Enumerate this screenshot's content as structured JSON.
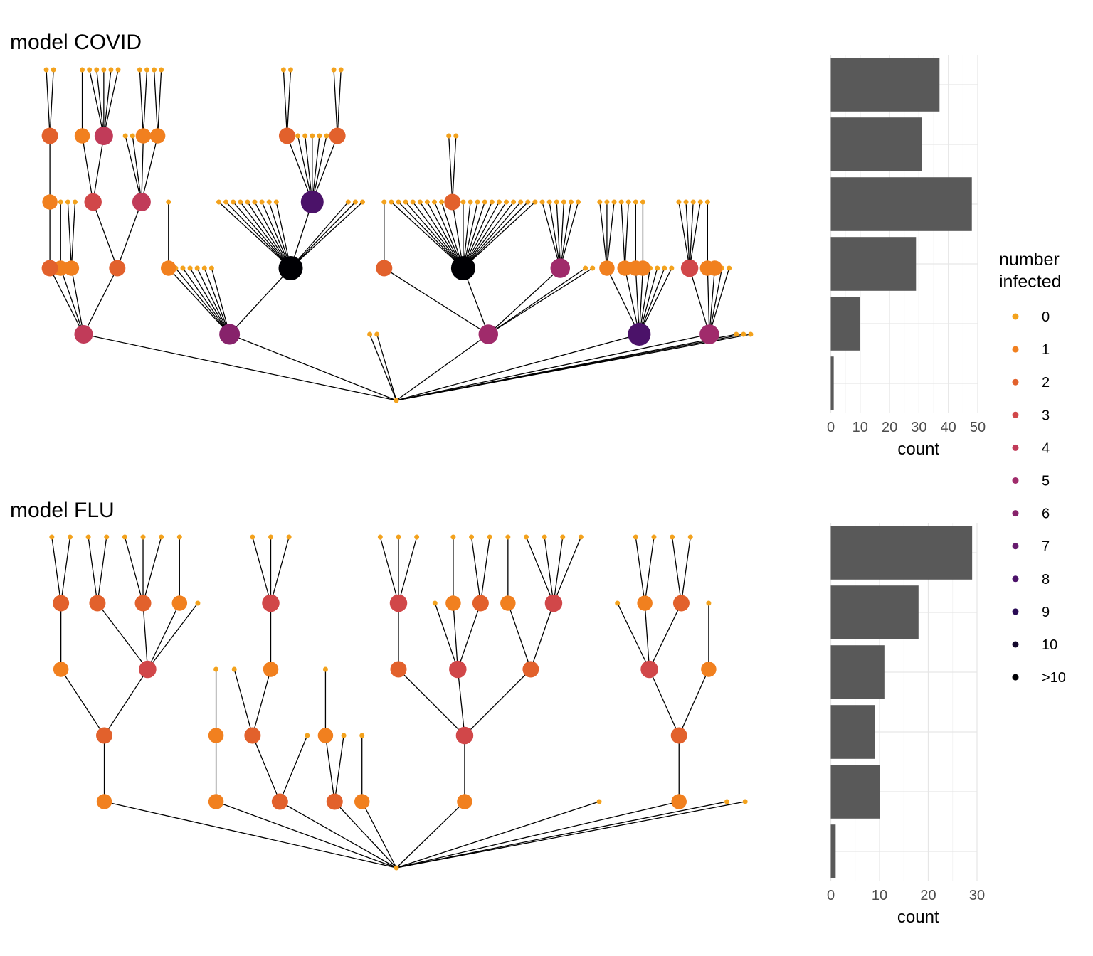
{
  "chart_data": [
    {
      "type": "tree",
      "title": "model COVID",
      "legend": {
        "title": [
          "number",
          "infected"
        ],
        "levels": [
          {
            "label": "0",
            "color": "#F3A21D"
          },
          {
            "label": "1",
            "color": "#F1801F"
          },
          {
            "label": "2",
            "color": "#E2612C"
          },
          {
            "label": "3",
            "color": "#D14749"
          },
          {
            "label": "4",
            "color": "#C13B59"
          },
          {
            "label": "5",
            "color": "#A02B6B"
          },
          {
            "label": "6",
            "color": "#87226B"
          },
          {
            "label": "7",
            "color": "#671B6E"
          },
          {
            "label": "8",
            "color": "#4B1269"
          },
          {
            "label": "9",
            "color": "#290B55"
          },
          {
            "label": "10",
            "color": "#14082D"
          },
          {
            "label": ">10",
            "color": "#000004"
          }
        ],
        "position": "right"
      }
    },
    {
      "type": "bar",
      "orientation": "horizontal",
      "values": [
        37,
        31,
        48,
        29,
        10,
        1
      ],
      "xlabel": "count",
      "xlim": [
        0,
        50
      ],
      "xticks": [
        "0",
        "10",
        "20",
        "30",
        "40",
        "50"
      ]
    },
    {
      "type": "tree",
      "title": "model FLU"
    },
    {
      "type": "bar",
      "orientation": "horizontal",
      "values": [
        29,
        18,
        11,
        9,
        10,
        1
      ],
      "xlabel": "count",
      "xlim": [
        0,
        30
      ],
      "xticks": [
        "0",
        "10",
        "20",
        "30"
      ]
    }
  ],
  "trees": {
    "covid": {
      "root": {
        "level": 0
      },
      "children": [
        {
          "level": 4,
          "children": [
            {
              "level": 2,
              "children": [
                {
                  "level": 1,
                  "children": [
                    {
                      "level": 2,
                      "children": [
                        {
                          "level": 0
                        },
                        {
                          "level": 0
                        }
                      ]
                    }
                  ]
                }
              ]
            },
            {
              "level": 1,
              "children": [
                {
                  "level": 0
                }
              ]
            },
            {
              "level": 1,
              "children": [
                {
                  "level": 0
                },
                {
                  "level": 0
                }
              ]
            },
            {
              "level": 2,
              "children": [
                {
                  "level": 3,
                  "children": [
                    {
                      "level": 1,
                      "children": [
                        {
                          "level": 0
                        }
                      ]
                    },
                    {
                      "level": 4,
                      "children": [
                        {
                          "level": 0
                        },
                        {
                          "level": 0
                        },
                        {
                          "level": 0
                        },
                        {
                          "level": 0
                        },
                        {
                          "level": 0
                        }
                      ]
                    }
                  ]
                },
                {
                  "level": 4,
                  "children": [
                    {
                      "level": 0
                    },
                    {
                      "level": 0
                    },
                    {
                      "level": 1,
                      "children": [
                        {
                          "level": 0
                        },
                        {
                          "level": 0
                        }
                      ]
                    },
                    {
                      "level": 1,
                      "children": [
                        {
                          "level": 0
                        },
                        {
                          "level": 0
                        }
                      ]
                    }
                  ]
                }
              ]
            }
          ]
        },
        {
          "level": 6,
          "children": [
            {
              "level": 1,
              "children": [
                {
                  "level": 0
                }
              ]
            },
            {
              "level": 0
            },
            {
              "level": 0
            },
            {
              "level": 0
            },
            {
              "level": 0
            },
            {
              "level": 0
            },
            {
              "level": 0
            },
            {
              ">10": true,
              "level": 11,
              "children": [
                {
                  "level": 0
                },
                {
                  "level": 0
                },
                {
                  "level": 0
                },
                {
                  "level": 0
                },
                {
                  "level": 0
                },
                {
                  "level": 0
                },
                {
                  "level": 0
                },
                {
                  "level": 0
                },
                {
                  "level": 0
                },
                {
                  "level": 8,
                  "children": [
                    {
                      "level": 2,
                      "children": [
                        {
                          "level": 0
                        },
                        {
                          "level": 0
                        }
                      ]
                    },
                    {
                      "level": 0
                    },
                    {
                      "level": 0
                    },
                    {
                      "level": 0
                    },
                    {
                      "level": 0
                    },
                    {
                      "level": 0
                    },
                    {
                      "level": 2,
                      "children": [
                        {
                          "level": 0
                        },
                        {
                          "level": 0
                        }
                      ]
                    }
                  ]
                },
                {
                  "level": 0
                },
                {
                  "level": 0
                },
                {
                  "level": 0
                }
              ]
            }
          ]
        },
        {
          "level": 0
        },
        {
          "level": 0
        },
        {
          "level": 5,
          "children": [
            {
              "level": 2,
              "children": [
                {
                  "level": 0
                }
              ]
            },
            {
              ">10": true,
              "level": 11,
              "children": [
                {
                  "level": 0
                },
                {
                  "level": 0
                },
                {
                  "level": 0
                },
                {
                  "level": 0
                },
                {
                  "level": 0
                },
                {
                  "level": 0
                },
                {
                  "level": 0
                },
                {
                  "level": 0
                },
                {
                  "level": 2,
                  "children": [
                    {
                      "level": 0
                    },
                    {
                      "level": 0
                    }
                  ]
                },
                {
                  "level": 0
                },
                {
                  "level": 0
                },
                {
                  "level": 0
                },
                {
                  "level": 0
                },
                {
                  "level": 0
                },
                {
                  "level": 0
                },
                {
                  "level": 0
                },
                {
                  "level": 0
                },
                {
                  "level": 0
                },
                {
                  "level": 0
                },
                {
                  "level": 0
                }
              ]
            },
            {
              "level": 5,
              "children": [
                {
                  "level": 0
                },
                {
                  "level": 0
                },
                {
                  "level": 0
                },
                {
                  "level": 0
                },
                {
                  "level": 0
                },
                {
                  "level": 0
                }
              ]
            },
            {
              "level": 0
            },
            {
              "level": 0
            }
          ]
        },
        {
          "level": 8,
          "children": [
            {
              "level": 1,
              "children": [
                {
                  "level": 0
                },
                {
                  "level": 0
                },
                {
                  "level": 0
                }
              ]
            },
            {
              "level": 1,
              "children": [
                {
                  "level": 0
                },
                {
                  "level": 0
                }
              ]
            },
            {
              "level": 1,
              "children": [
                {
                  "level": 0
                }
              ]
            },
            {
              "level": 1,
              "children": [
                {
                  "level": 0
                }
              ]
            },
            {
              "level": 0
            },
            {
              "level": 0
            },
            {
              "level": 0
            },
            {
              "level": 0
            }
          ]
        },
        {
          "level": 5,
          "children": [
            {
              "level": 3,
              "children": [
                {
                  "level": 0
                },
                {
                  "level": 0
                },
                {
                  "level": 0
                },
                {
                  "level": 0
                }
              ]
            },
            {
              "level": 1,
              "children": [
                {
                  "level": 0
                }
              ]
            },
            {
              "level": 1
            },
            {
              "level": 0
            },
            {
              "level": 0
            }
          ]
        },
        {
          "level": 0
        },
        {
          "level": 0
        },
        {
          "level": 0
        }
      ]
    },
    "flu": {
      "root": {
        "level": 0
      },
      "children": [
        {
          "level": 1,
          "children": [
            {
              "level": 2,
              "children": [
                {
                  "level": 1,
                  "children": [
                    {
                      "level": 2,
                      "children": [
                        {
                          "level": 0
                        },
                        {
                          "level": 0
                        }
                      ]
                    }
                  ]
                },
                {
                  "level": 3,
                  "children": [
                    {
                      "level": 2,
                      "children": [
                        {
                          "level": 0
                        },
                        {
                          "level": 0
                        }
                      ]
                    },
                    {
                      "level": 2,
                      "children": [
                        {
                          "level": 0
                        },
                        {
                          "level": 0
                        },
                        {
                          "level": 0
                        }
                      ]
                    },
                    {
                      "level": 1,
                      "children": [
                        {
                          "level": 0
                        }
                      ]
                    },
                    {
                      "level": 0
                    }
                  ]
                }
              ]
            }
          ]
        },
        {
          "level": 1,
          "children": [
            {
              "level": 1,
              "children": [
                {
                  "level": 0
                }
              ]
            }
          ]
        },
        {
          "level": 2,
          "children": [
            {
              "level": 2,
              "children": [
                {
                  "level": 0
                },
                {
                  "level": 1,
                  "children": [
                    {
                      "level": 3,
                      "children": [
                        {
                          "level": 0
                        },
                        {
                          "level": 0
                        },
                        {
                          "level": 0
                        }
                      ]
                    }
                  ]
                }
              ]
            },
            {
              "level": 0
            }
          ]
        },
        {
          "level": 2,
          "children": [
            {
              "level": 1,
              "children": [
                {
                  "level": 0
                }
              ]
            },
            {
              "level": 0
            }
          ]
        },
        {
          "level": 1,
          "children": [
            {
              "level": 0
            }
          ]
        },
        {
          "level": 1,
          "children": [
            {
              "level": 3,
              "children": [
                {
                  "level": 2,
                  "children": [
                    {
                      "level": 3,
                      "children": [
                        {
                          "level": 0
                        },
                        {
                          "level": 0
                        },
                        {
                          "level": 0
                        }
                      ]
                    }
                  ]
                },
                {
                  "level": 3,
                  "children": [
                    {
                      "level": 0
                    },
                    {
                      "level": 1,
                      "children": [
                        {
                          "level": 0
                        }
                      ]
                    },
                    {
                      "level": 2,
                      "children": [
                        {
                          "level": 0
                        },
                        {
                          "level": 0
                        }
                      ]
                    }
                  ]
                },
                {
                  "level": 2,
                  "children": [
                    {
                      "level": 1,
                      "children": [
                        {
                          "level": 0
                        }
                      ]
                    },
                    {
                      "level": 3,
                      "children": [
                        {
                          "level": 0
                        },
                        {
                          "level": 0
                        },
                        {
                          "level": 0
                        },
                        {
                          "level": 0
                        }
                      ]
                    }
                  ]
                }
              ]
            }
          ]
        },
        {
          "level": 0
        },
        {
          "level": 1,
          "children": [
            {
              "level": 2,
              "children": [
                {
                  "level": 3,
                  "children": [
                    {
                      "level": 0
                    },
                    {
                      "level": 1,
                      "children": [
                        {
                          "level": 0
                        },
                        {
                          "level": 0
                        }
                      ]
                    },
                    {
                      "level": 2,
                      "children": [
                        {
                          "level": 0
                        },
                        {
                          "level": 0
                        }
                      ]
                    }
                  ]
                },
                {
                  "level": 1,
                  "children": [
                    {
                      "level": 0
                    }
                  ]
                }
              ]
            }
          ]
        },
        {
          "level": 0
        },
        {
          "level": 0
        }
      ]
    }
  }
}
